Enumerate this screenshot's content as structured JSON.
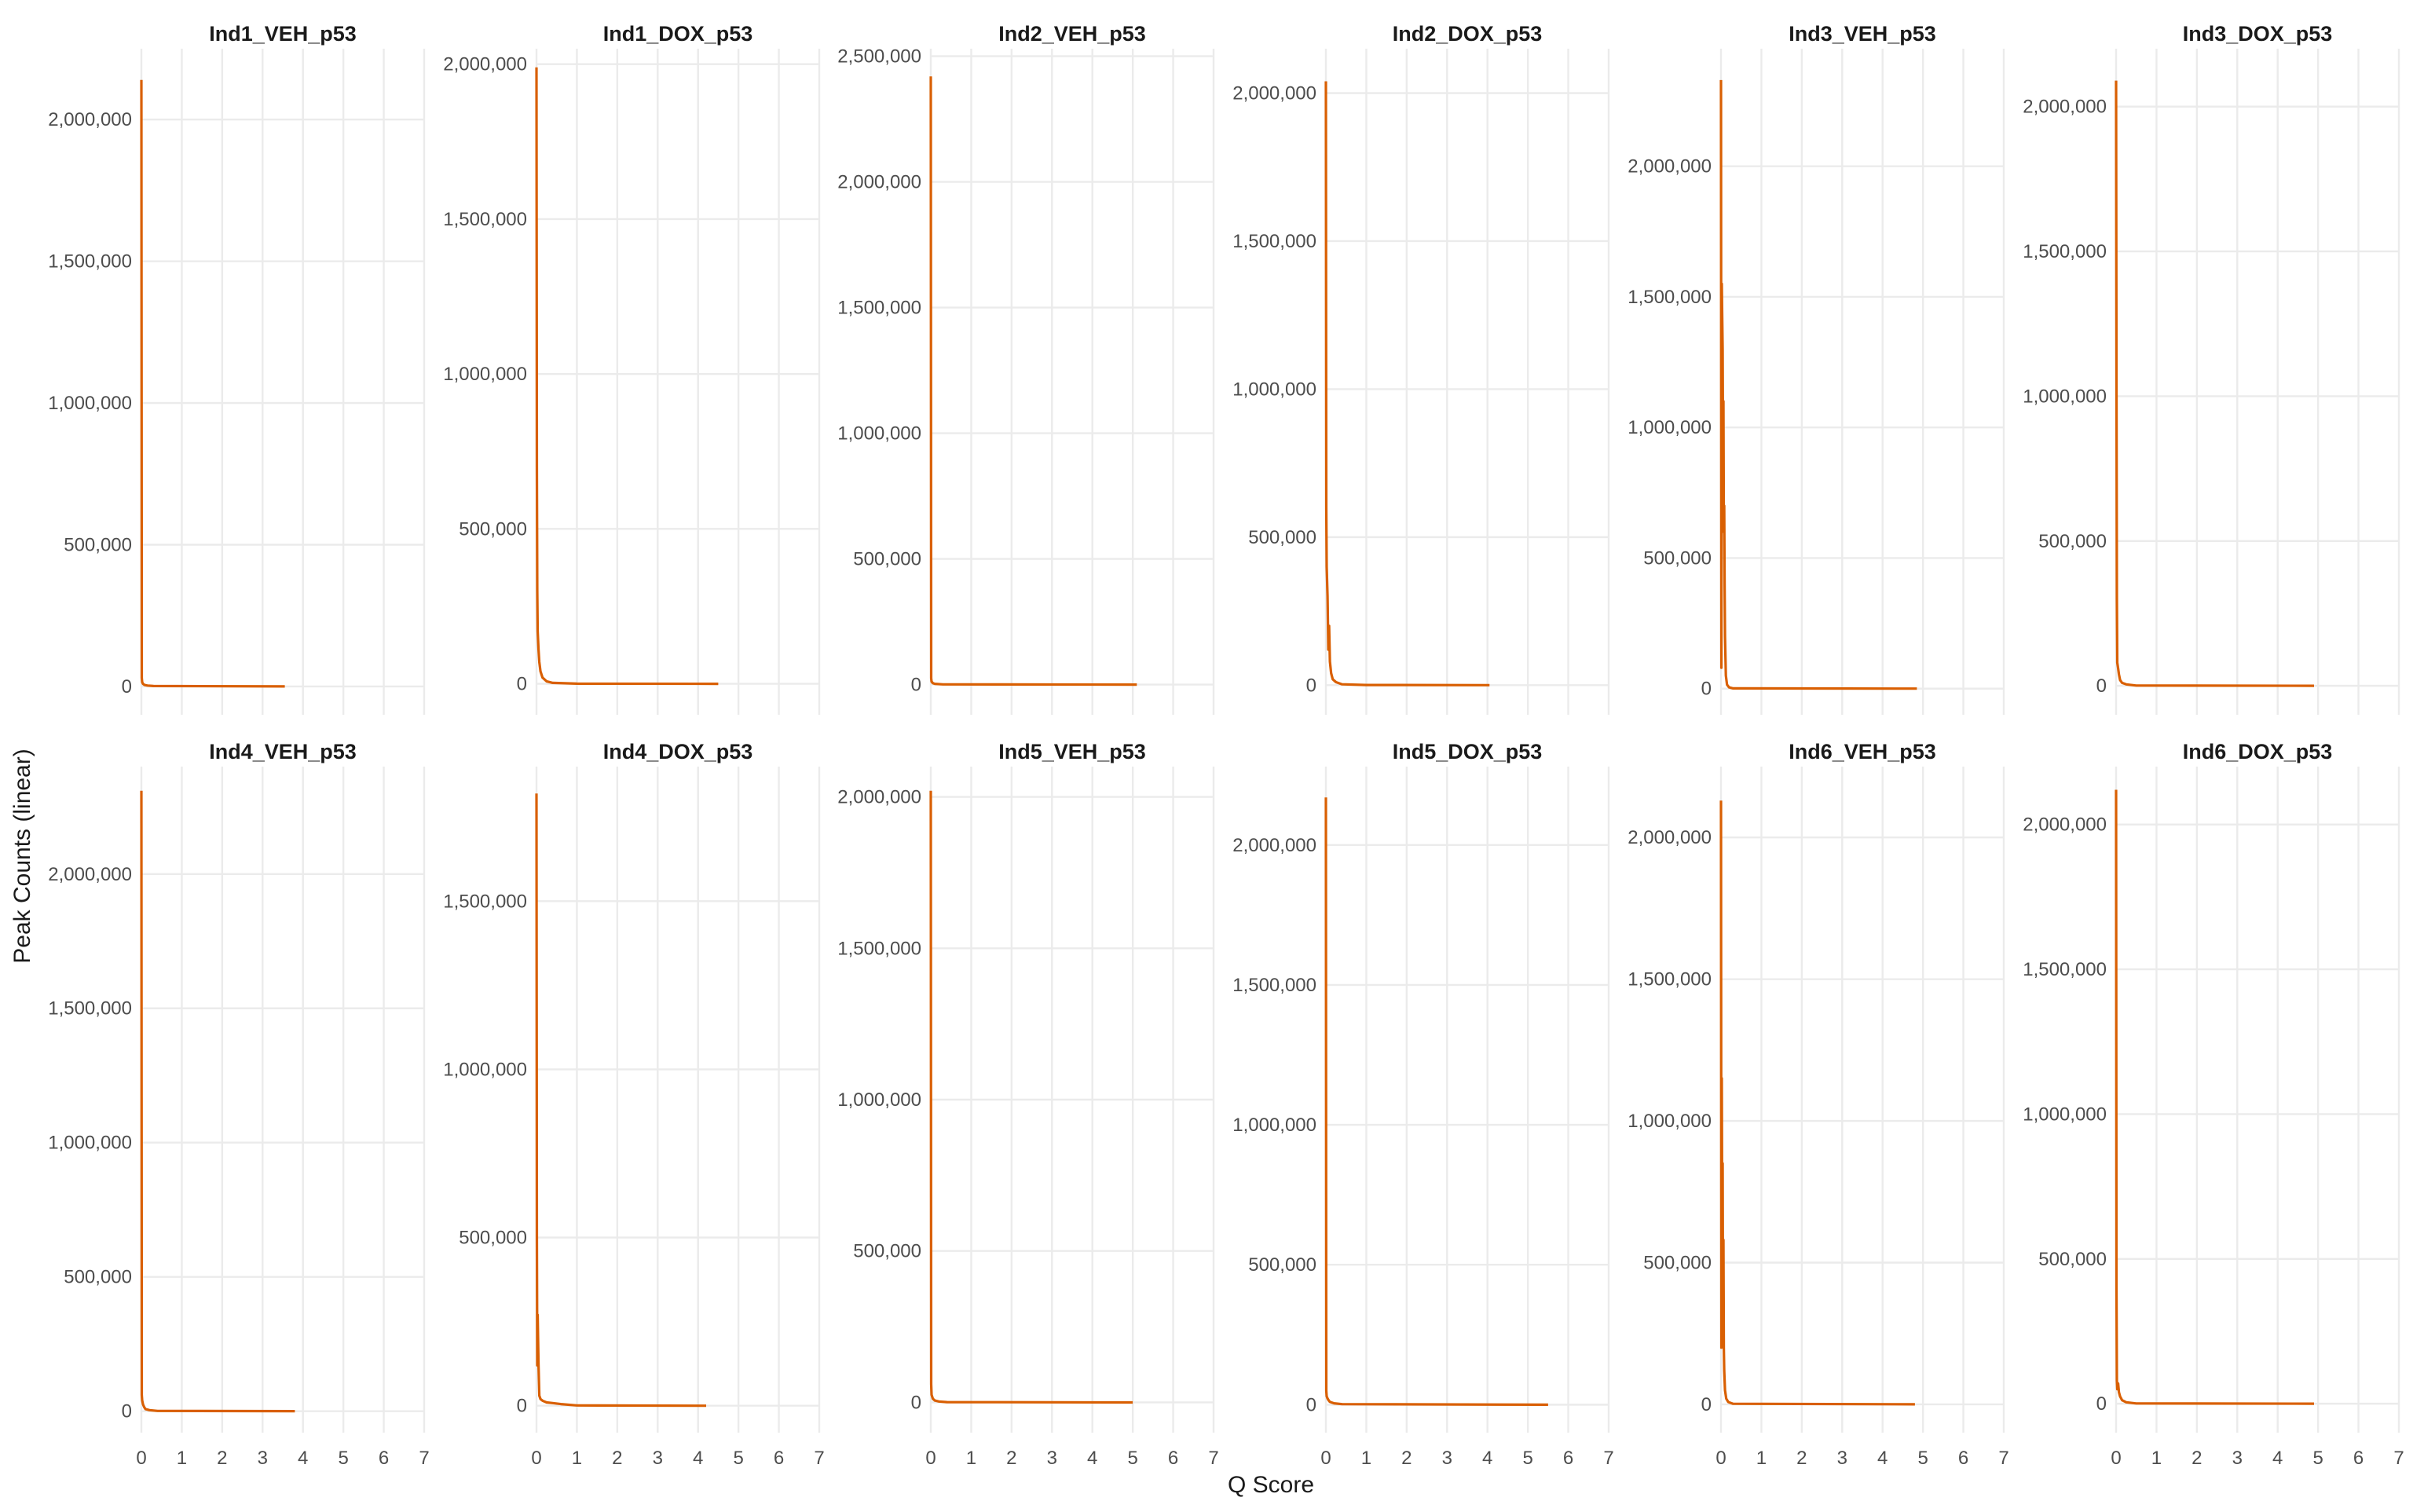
{
  "chart_data": {
    "type": "line",
    "xlabel": "Q Score",
    "ylabel": "Peak Counts (linear)",
    "grid": true,
    "line_color": "#D95F02",
    "x_ticks": [
      0,
      1,
      2,
      3,
      4,
      5,
      6,
      7
    ],
    "xlim": [
      0,
      7
    ],
    "panels": [
      {
        "title": "Ind1_VEH_p53",
        "y_ticks": [
          0,
          500000,
          1000000,
          1500000,
          2000000
        ],
        "y_tick_labels": [
          "0",
          "500,000",
          "1,000,000",
          "1,500,000",
          "2,000,000"
        ],
        "ylim": [
          -100000,
          2250000
        ],
        "x": [
          0,
          0.01,
          0.02,
          0.04,
          0.08,
          0.15,
          0.3,
          3.55
        ],
        "y": [
          2140000,
          30000,
          15000,
          9000,
          5000,
          3000,
          1500,
          0
        ]
      },
      {
        "title": "Ind1_DOX_p53",
        "y_ticks": [
          0,
          500000,
          1000000,
          1500000,
          2000000
        ],
        "y_tick_labels": [
          "0",
          "500,000",
          "1,000,000",
          "1,500,000",
          "2,000,000"
        ],
        "ylim": [
          -100000,
          2050000
        ],
        "x": [
          0,
          0.01,
          0.02,
          0.03,
          0.05,
          0.07,
          0.1,
          0.15,
          0.25,
          0.4,
          1.0,
          4.5
        ],
        "y": [
          1990000,
          700000,
          300000,
          170000,
          110000,
          70000,
          40000,
          20000,
          8000,
          3000,
          500,
          0
        ]
      },
      {
        "title": "Ind2_VEH_p53",
        "y_ticks": [
          0,
          500000,
          1000000,
          1500000,
          2000000,
          2500000
        ],
        "y_tick_labels": [
          "0",
          "500,000",
          "1,000,000",
          "1,500,000",
          "2,000,000",
          "2,500,000"
        ],
        "ylim": [
          -120000,
          2530000
        ],
        "x": [
          0,
          0.01,
          0.02,
          0.05,
          0.1,
          0.3,
          5.1
        ],
        "y": [
          2420000,
          25000,
          12000,
          6000,
          3000,
          1000,
          0
        ]
      },
      {
        "title": "Ind2_DOX_p53",
        "y_ticks": [
          0,
          500000,
          1000000,
          1500000,
          2000000
        ],
        "y_tick_labels": [
          "0",
          "500,000",
          "1,000,000",
          "1,500,000",
          "2,000,000"
        ],
        "ylim": [
          -100000,
          2150000
        ],
        "x": [
          0,
          0.01,
          0.02,
          0.04,
          0.06,
          0.08,
          0.1,
          0.13,
          0.17,
          0.25,
          0.4,
          1.0,
          4.05
        ],
        "y": [
          2040000,
          600000,
          400000,
          300000,
          120000,
          200000,
          80000,
          40000,
          20000,
          10000,
          3000,
          500,
          0
        ]
      },
      {
        "title": "Ind3_VEH_p53",
        "y_ticks": [
          0,
          500000,
          1000000,
          1500000,
          2000000
        ],
        "y_tick_labels": [
          "0",
          "500,000",
          "1,000,000",
          "1,500,000",
          "2,000,000"
        ],
        "ylim": [
          -100000,
          2450000
        ],
        "x": [
          0,
          0.01,
          0.02,
          0.04,
          0.05,
          0.06,
          0.07,
          0.08,
          0.09,
          0.1,
          0.12,
          0.15,
          0.2,
          0.3,
          4.85
        ],
        "y": [
          2330000,
          80000,
          1550000,
          1300000,
          900000,
          1100000,
          600000,
          700000,
          400000,
          200000,
          50000,
          15000,
          5000,
          1000,
          0
        ]
      },
      {
        "title": "Ind3_DOX_p53",
        "y_ticks": [
          0,
          500000,
          1000000,
          1500000,
          2000000
        ],
        "y_tick_labels": [
          "0",
          "500,000",
          "1,000,000",
          "1,500,000",
          "2,000,000"
        ],
        "ylim": [
          -100000,
          2200000
        ],
        "x": [
          0,
          0.01,
          0.02,
          0.03,
          0.05,
          0.07,
          0.1,
          0.15,
          0.25,
          0.5,
          4.9
        ],
        "y": [
          2090000,
          1060000,
          300000,
          80000,
          60000,
          40000,
          20000,
          10000,
          5000,
          1000,
          0
        ]
      },
      {
        "title": "Ind4_VEH_p53",
        "y_ticks": [
          0,
          500000,
          1000000,
          1500000,
          2000000
        ],
        "y_tick_labels": [
          "0",
          "500,000",
          "1,000,000",
          "1,500,000",
          "2,000,000"
        ],
        "ylim": [
          -80000,
          2400000
        ],
        "x": [
          0,
          0.01,
          0.02,
          0.04,
          0.07,
          0.1,
          0.2,
          0.4,
          3.8
        ],
        "y": [
          2310000,
          60000,
          40000,
          25000,
          15000,
          8000,
          4000,
          1000,
          0
        ]
      },
      {
        "title": "Ind4_DOX_p53",
        "y_ticks": [
          0,
          500000,
          1000000,
          1500000
        ],
        "y_tick_labels": [
          "0",
          "500,000",
          "1,000,000",
          "1,500,000"
        ],
        "ylim": [
          -80000,
          1900000
        ],
        "x": [
          0,
          0.01,
          0.02,
          0.03,
          0.05,
          0.07,
          0.1,
          0.15,
          0.25,
          0.4,
          0.6,
          1.0,
          4.2
        ],
        "y": [
          1820000,
          500000,
          120000,
          270000,
          120000,
          30000,
          20000,
          15000,
          10000,
          8000,
          5000,
          1000,
          0
        ]
      },
      {
        "title": "Ind5_VEH_p53",
        "y_ticks": [
          0,
          500000,
          1000000,
          1500000,
          2000000
        ],
        "y_tick_labels": [
          "0",
          "500,000",
          "1,000,000",
          "1,500,000",
          "2,000,000"
        ],
        "ylim": [
          -100000,
          2100000
        ],
        "x": [
          0,
          0.01,
          0.02,
          0.05,
          0.1,
          0.2,
          0.4,
          5.0
        ],
        "y": [
          2020000,
          60000,
          25000,
          12000,
          6000,
          3000,
          1000,
          0
        ]
      },
      {
        "title": "Ind5_DOX_p53",
        "y_ticks": [
          0,
          500000,
          1000000,
          1500000,
          2000000
        ],
        "y_tick_labels": [
          "0",
          "500,000",
          "1,000,000",
          "1,500,000",
          "2,000,000"
        ],
        "ylim": [
          -100000,
          2280000
        ],
        "x": [
          0,
          0.01,
          0.02,
          0.04,
          0.07,
          0.1,
          0.2,
          0.4,
          5.5
        ],
        "y": [
          2170000,
          50000,
          30000,
          22000,
          15000,
          10000,
          5000,
          2000,
          0
        ]
      },
      {
        "title": "Ind6_VEH_p53",
        "y_ticks": [
          0,
          500000,
          1000000,
          1500000,
          2000000
        ],
        "y_tick_labels": [
          "0",
          "500,000",
          "1,000,000",
          "1,500,000",
          "2,000,000"
        ],
        "ylim": [
          -100000,
          2250000
        ],
        "x": [
          0,
          0.01,
          0.02,
          0.03,
          0.04,
          0.05,
          0.06,
          0.07,
          0.08,
          0.1,
          0.13,
          0.18,
          0.3,
          4.8
        ],
        "y": [
          2130000,
          200000,
          1150000,
          700000,
          850000,
          250000,
          580000,
          200000,
          120000,
          50000,
          20000,
          8000,
          2000,
          0
        ]
      },
      {
        "title": "Ind6_DOX_p53",
        "y_ticks": [
          0,
          500000,
          1000000,
          1500000,
          2000000
        ],
        "y_tick_labels": [
          "0",
          "500,000",
          "1,000,000",
          "1,500,000",
          "2,000,000"
        ],
        "ylim": [
          -100000,
          2200000
        ],
        "x": [
          0,
          0.01,
          0.02,
          0.03,
          0.05,
          0.07,
          0.1,
          0.15,
          0.25,
          0.5,
          4.9
        ],
        "y": [
          2120000,
          400000,
          80000,
          50000,
          70000,
          40000,
          25000,
          12000,
          5000,
          1000,
          0
        ]
      }
    ]
  }
}
